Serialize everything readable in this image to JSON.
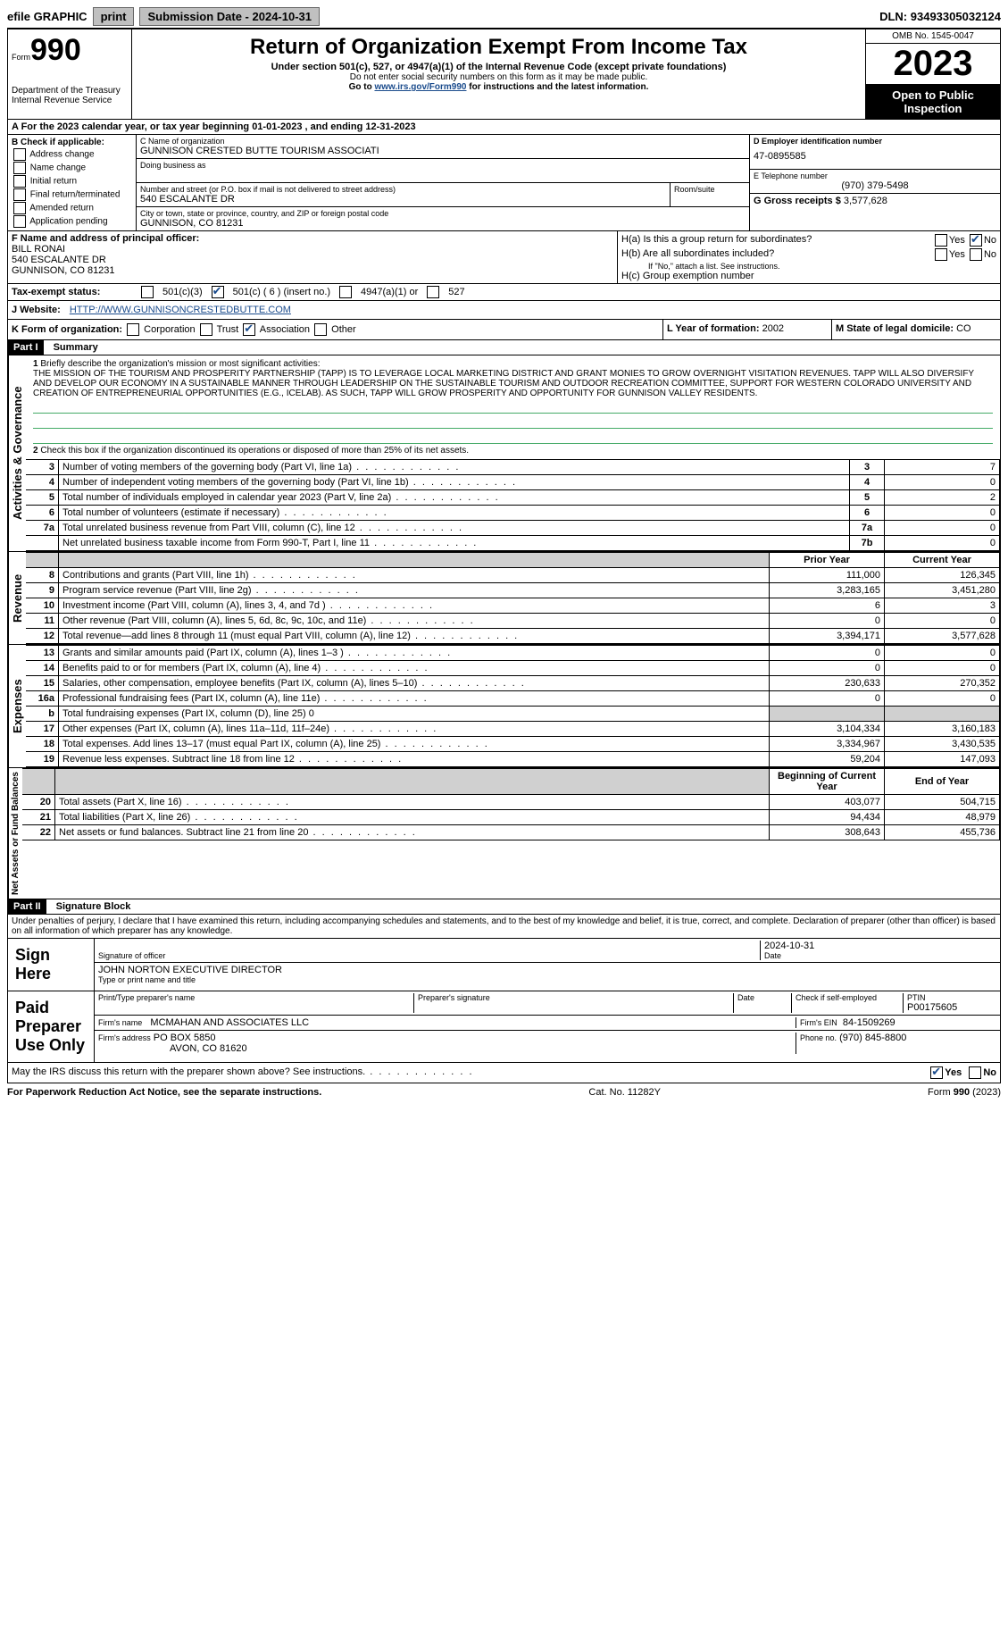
{
  "topbar": {
    "efile": "efile GRAPHIC",
    "print": "print",
    "submission_label": "Submission Date - ",
    "submission_date": "2024-10-31",
    "dln_label": "DLN: ",
    "dln": "93493305032124"
  },
  "header": {
    "form_word": "Form",
    "form_num": "990",
    "dept": "Department of the Treasury",
    "irs": "Internal Revenue Service",
    "title": "Return of Organization Exempt From Income Tax",
    "sub": "Under section 501(c), 527, or 4947(a)(1) of the Internal Revenue Code (except private foundations)",
    "note1": "Do not enter social security numbers on this form as it may be made public.",
    "note2_pre": "Go to ",
    "note2_link": "www.irs.gov/Form990",
    "note2_post": " for instructions and the latest information.",
    "omb": "OMB No. 1545-0047",
    "year": "2023",
    "open": "Open to Public Inspection"
  },
  "rowA": "A For the 2023 calendar year, or tax year beginning 01-01-2023   , and ending 12-31-2023",
  "boxB": {
    "title": "B Check if applicable:",
    "items": [
      "Address change",
      "Name change",
      "Initial return",
      "Final return/terminated",
      "Amended return",
      "Application pending"
    ]
  },
  "boxC": {
    "name_label": "C Name of organization",
    "name": "GUNNISON CRESTED BUTTE TOURISM ASSOCIATI",
    "dba_label": "Doing business as",
    "street_label": "Number and street (or P.O. box if mail is not delivered to street address)",
    "room_label": "Room/suite",
    "street": "540 ESCALANTE DR",
    "city_label": "City or town, state or province, country, and ZIP or foreign postal code",
    "city": "GUNNISON, CO  81231"
  },
  "boxD": {
    "label": "D Employer identification number",
    "value": "47-0895585"
  },
  "boxE": {
    "label": "E Telephone number",
    "value": "(970) 379-5498"
  },
  "boxG": {
    "label": "G Gross receipts $",
    "value": "3,577,628"
  },
  "boxF": {
    "label": "F  Name and address of principal officer:",
    "name": "BILL RONAI",
    "street": "540 ESCALANTE DR",
    "city": "GUNNISON, CO  81231"
  },
  "boxH": {
    "a": "H(a)  Is this a group return for subordinates?",
    "b": "H(b)  Are all subordinates included?",
    "b_note": "If \"No,\" attach a list. See instructions.",
    "c": "H(c)  Group exemption number",
    "yes": "Yes",
    "no": "No"
  },
  "taxStatus": {
    "label": "Tax-exempt status:",
    "c3": "501(c)(3)",
    "c_insert": "501(c) ( 6 ) (insert no.)",
    "a1": "4947(a)(1) or",
    "s527": "527"
  },
  "rowJ": {
    "label": "J   Website:",
    "value": "HTTP://WWW.GUNNISONCRESTEDBUTTE.COM"
  },
  "rowK": {
    "label": "K Form of organization:",
    "corp": "Corporation",
    "trust": "Trust",
    "assoc": "Association",
    "other": "Other",
    "l_label": "L Year of formation:",
    "l_val": "2002",
    "m_label": "M State of legal domicile:",
    "m_val": "CO"
  },
  "part1": {
    "header": "Part I",
    "title": "Summary",
    "vert1": "Activities & Governance",
    "vert2": "Revenue",
    "vert3": "Expenses",
    "vert4": "Net Assets or Fund Balances",
    "line1_label": "Briefly describe the organization's mission or most significant activities:",
    "mission": "THE MISSION OF THE TOURISM AND PROSPERITY PARTNERSHIP (TAPP) IS TO LEVERAGE LOCAL MARKETING DISTRICT AND GRANT MONIES TO GROW OVERNIGHT VISITATION REVENUES. TAPP WILL ALSO DIVERSIFY AND DEVELOP OUR ECONOMY IN A SUSTAINABLE MANNER THROUGH LEADERSHIP ON THE SUSTAINABLE TOURISM AND OUTDOOR RECREATION COMMITTEE, SUPPORT FOR WESTERN COLORADO UNIVERSITY AND CREATION OF ENTREPRENEURIAL OPPORTUNITIES (E.G., ICELAB). AS SUCH, TAPP WILL GROW PROSPERITY AND OPPORTUNITY FOR GUNNISON VALLEY RESIDENTS.",
    "line2": "Check this box       if the organization discontinued its operations or disposed of more than 25% of its net assets.",
    "rows_ag": [
      {
        "n": "3",
        "desc": "Number of voting members of the governing body (Part VI, line 1a)",
        "box": "3",
        "val": "7"
      },
      {
        "n": "4",
        "desc": "Number of independent voting members of the governing body (Part VI, line 1b)",
        "box": "4",
        "val": "0"
      },
      {
        "n": "5",
        "desc": "Total number of individuals employed in calendar year 2023 (Part V, line 2a)",
        "box": "5",
        "val": "2"
      },
      {
        "n": "6",
        "desc": "Total number of volunteers (estimate if necessary)",
        "box": "6",
        "val": "0"
      },
      {
        "n": "7a",
        "desc": "Total unrelated business revenue from Part VIII, column (C), line 12",
        "box": "7a",
        "val": "0"
      },
      {
        "n": "",
        "desc": "Net unrelated business taxable income from Form 990-T, Part I, line 11",
        "box": "7b",
        "val": "0"
      }
    ],
    "col_prior": "Prior Year",
    "col_current": "Current Year",
    "rows_rev": [
      {
        "n": "8",
        "desc": "Contributions and grants (Part VIII, line 1h)",
        "p": "111,000",
        "c": "126,345"
      },
      {
        "n": "9",
        "desc": "Program service revenue (Part VIII, line 2g)",
        "p": "3,283,165",
        "c": "3,451,280"
      },
      {
        "n": "10",
        "desc": "Investment income (Part VIII, column (A), lines 3, 4, and 7d )",
        "p": "6",
        "c": "3"
      },
      {
        "n": "11",
        "desc": "Other revenue (Part VIII, column (A), lines 5, 6d, 8c, 9c, 10c, and 11e)",
        "p": "0",
        "c": "0"
      },
      {
        "n": "12",
        "desc": "Total revenue—add lines 8 through 11 (must equal Part VIII, column (A), line 12)",
        "p": "3,394,171",
        "c": "3,577,628"
      }
    ],
    "rows_exp": [
      {
        "n": "13",
        "desc": "Grants and similar amounts paid (Part IX, column (A), lines 1–3 )",
        "p": "0",
        "c": "0"
      },
      {
        "n": "14",
        "desc": "Benefits paid to or for members (Part IX, column (A), line 4)",
        "p": "0",
        "c": "0"
      },
      {
        "n": "15",
        "desc": "Salaries, other compensation, employee benefits (Part IX, column (A), lines 5–10)",
        "p": "230,633",
        "c": "270,352"
      },
      {
        "n": "16a",
        "desc": "Professional fundraising fees (Part IX, column (A), line 11e)",
        "p": "0",
        "c": "0"
      },
      {
        "n": "b",
        "desc": "Total fundraising expenses (Part IX, column (D), line 25) 0",
        "p": "",
        "c": "",
        "shade": true
      },
      {
        "n": "17",
        "desc": "Other expenses (Part IX, column (A), lines 11a–11d, 11f–24e)",
        "p": "3,104,334",
        "c": "3,160,183"
      },
      {
        "n": "18",
        "desc": "Total expenses. Add lines 13–17 (must equal Part IX, column (A), line 25)",
        "p": "3,334,967",
        "c": "3,430,535"
      },
      {
        "n": "19",
        "desc": "Revenue less expenses. Subtract line 18 from line 12",
        "p": "59,204",
        "c": "147,093"
      }
    ],
    "col_begin": "Beginning of Current Year",
    "col_end": "End of Year",
    "rows_na": [
      {
        "n": "20",
        "desc": "Total assets (Part X, line 16)",
        "p": "403,077",
        "c": "504,715"
      },
      {
        "n": "21",
        "desc": "Total liabilities (Part X, line 26)",
        "p": "94,434",
        "c": "48,979"
      },
      {
        "n": "22",
        "desc": "Net assets or fund balances. Subtract line 21 from line 20",
        "p": "308,643",
        "c": "455,736"
      }
    ]
  },
  "part2": {
    "header": "Part II",
    "title": "Signature Block",
    "penalty": "Under penalties of perjury, I declare that I have examined this return, including accompanying schedules and statements, and to the best of my knowledge and belief, it is true, correct, and complete. Declaration of preparer (other than officer) is based on all information of which preparer has any knowledge.",
    "sign_here": "Sign Here",
    "sig_officer": "Signature of officer",
    "sig_date": "2024-10-31",
    "date_label": "Date",
    "officer_name": "JOHN NORTON  EXECUTIVE DIRECTOR",
    "type_label": "Type or print name and title",
    "paid": "Paid Preparer Use Only",
    "prep_name_label": "Print/Type preparer's name",
    "prep_sig_label": "Preparer's signature",
    "check_self": "Check         if self-employed",
    "ptin_label": "PTIN",
    "ptin": "P00175605",
    "firm_name_label": "Firm's name",
    "firm_name": "MCMAHAN AND ASSOCIATES LLC",
    "firm_ein_label": "Firm's EIN",
    "firm_ein": "84-1509269",
    "firm_addr_label": "Firm's address",
    "firm_addr1": "PO BOX 5850",
    "firm_addr2": "AVON, CO  81620",
    "phone_label": "Phone no.",
    "phone": "(970) 845-8800",
    "discuss": "May the IRS discuss this return with the preparer shown above? See instructions."
  },
  "footer": {
    "pra": "For Paperwork Reduction Act Notice, see the separate instructions.",
    "cat": "Cat. No. 11282Y",
    "form": "Form 990 (2023)"
  }
}
